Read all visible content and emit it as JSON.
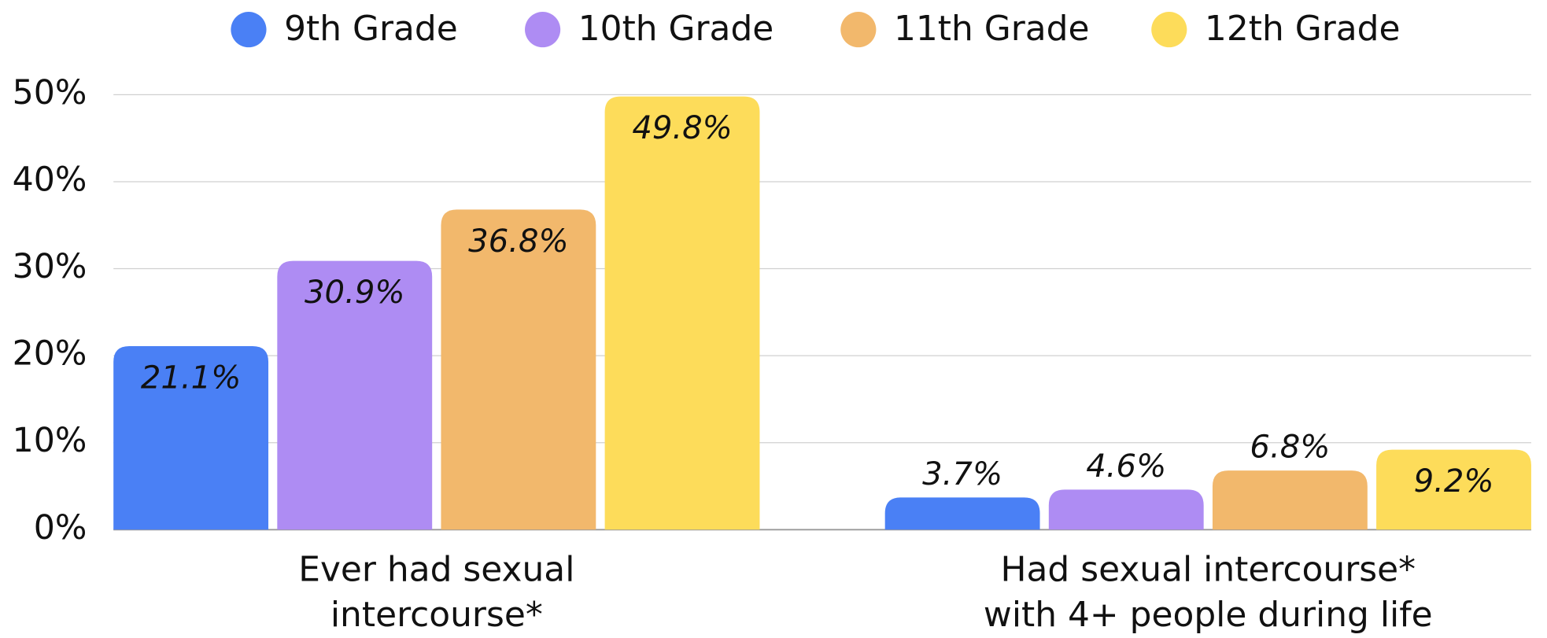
{
  "chart_data": {
    "type": "bar",
    "categories": [
      "Ever had sexual intercourse*",
      "Had sexual intercourse* with 4+ people during life"
    ],
    "series": [
      {
        "name": "9th Grade",
        "color": "#4a80f5",
        "values": [
          21.1,
          3.7
        ],
        "value_labels": [
          "21.1%",
          "3.7%"
        ]
      },
      {
        "name": "10th Grade",
        "color": "#ae8cf3",
        "values": [
          30.9,
          4.6
        ],
        "value_labels": [
          "30.9%",
          "4.6%"
        ]
      },
      {
        "name": "11th Grade",
        "color": "#f2b86c",
        "values": [
          36.8,
          6.8
        ],
        "value_labels": [
          "36.8%",
          "6.8%"
        ]
      },
      {
        "name": "12th Grade",
        "color": "#fddc5a",
        "values": [
          49.8,
          9.2
        ],
        "value_labels": [
          "49.8%",
          "9.2%"
        ]
      }
    ],
    "ylim": [
      0,
      50
    ],
    "yticks": [
      {
        "value": 0,
        "label": "0%"
      },
      {
        "value": 10,
        "label": "10%"
      },
      {
        "value": 20,
        "label": "20%"
      },
      {
        "value": 30,
        "label": "30%"
      },
      {
        "value": 40,
        "label": "40%"
      },
      {
        "value": 50,
        "label": "50%"
      }
    ],
    "grid": true,
    "legend": "top"
  }
}
